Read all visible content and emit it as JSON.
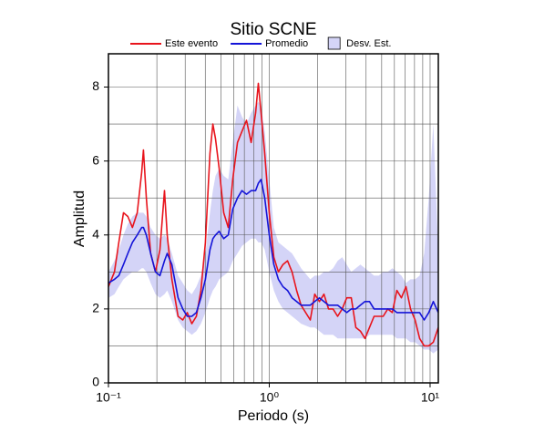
{
  "chart_data": {
    "type": "line",
    "title": "Sitio SCNE",
    "x_label": "Periodo (s)",
    "y_label": "Amplitud",
    "xscale": "log",
    "grid": true,
    "legend": "top",
    "xlim": [
      0.1,
      11.25
    ],
    "ylim": [
      0,
      8.9
    ],
    "xticks": [
      {
        "value": 0.1,
        "label": "10⁻¹"
      },
      {
        "value": 1,
        "label": "10⁰"
      },
      {
        "value": 10,
        "label": "10¹"
      }
    ],
    "xminor": [
      0.2,
      0.3,
      0.4,
      0.5,
      0.6,
      0.7,
      0.8,
      0.9,
      2,
      3,
      4,
      5,
      6,
      7,
      8,
      9
    ],
    "yticks": [
      0,
      2,
      4,
      6,
      8
    ],
    "yminor": [
      1,
      3,
      5,
      7
    ],
    "x": [
      0.1,
      0.109,
      0.116,
      0.124,
      0.132,
      0.141,
      0.151,
      0.161,
      0.165,
      0.172,
      0.183,
      0.196,
      0.209,
      0.223,
      0.232,
      0.248,
      0.271,
      0.29,
      0.309,
      0.33,
      0.352,
      0.376,
      0.401,
      0.428,
      0.446,
      0.463,
      0.488,
      0.521,
      0.556,
      0.593,
      0.634,
      0.676,
      0.722,
      0.771,
      0.822,
      0.855,
      0.889,
      0.937,
      1.0,
      1.067,
      1.139,
      1.216,
      1.298,
      1.385,
      1.479,
      1.578,
      1.798,
      1.919,
      2.049,
      2.187,
      2.334,
      2.492,
      2.66,
      2.839,
      3.031,
      3.235,
      3.453,
      3.686,
      3.935,
      4.2,
      4.483,
      4.786,
      5.108,
      5.453,
      5.821,
      6.213,
      6.632,
      7.079,
      7.557,
      8.066,
      8.61,
      9.191,
      9.811,
      10.47,
      11.25
    ],
    "band": {
      "name": "Desv. Est.",
      "color": "#d4d4f7",
      "lower": [
        2.3,
        2.4,
        2.6,
        2.8,
        2.9,
        3.0,
        3.0,
        3.1,
        3.1,
        3.0,
        2.7,
        2.4,
        2.3,
        2.4,
        2.5,
        2.2,
        1.7,
        1.5,
        1.4,
        1.3,
        1.4,
        1.6,
        1.9,
        2.3,
        2.5,
        2.6,
        2.8,
        2.9,
        3.0,
        3.3,
        3.5,
        3.7,
        3.8,
        3.9,
        3.9,
        3.8,
        3.8,
        3.6,
        3.0,
        2.5,
        2.2,
        2.0,
        1.9,
        1.8,
        1.7,
        1.6,
        1.5,
        1.5,
        1.4,
        1.3,
        1.3,
        1.3,
        1.2,
        1.2,
        1.2,
        1.2,
        1.2,
        1.2,
        1.2,
        1.3,
        1.3,
        1.3,
        1.3,
        1.3,
        1.3,
        1.2,
        1.2,
        1.2,
        1.1,
        1.1,
        1.0,
        0.9,
        0.9,
        0.8,
        0.9
      ],
      "upper": [
        3.0,
        3.3,
        3.6,
        4.0,
        4.3,
        4.5,
        4.6,
        4.6,
        4.6,
        4.5,
        4.2,
        4.0,
        3.9,
        4.0,
        3.9,
        3.5,
        2.9,
        2.7,
        2.5,
        2.4,
        2.6,
        2.9,
        3.5,
        4.6,
        5.2,
        5.6,
        5.8,
        5.6,
        5.5,
        6.5,
        7.5,
        7.2,
        7.0,
        7.3,
        7.5,
        7.6,
        7.5,
        6.8,
        5.5,
        4.2,
        3.8,
        3.7,
        3.6,
        3.5,
        3.3,
        3.1,
        2.8,
        2.9,
        2.9,
        3.0,
        3.0,
        3.1,
        3.3,
        3.4,
        3.2,
        3.0,
        3.1,
        3.2,
        3.1,
        3.0,
        2.9,
        2.9,
        3.0,
        3.0,
        3.1,
        3.0,
        2.9,
        2.7,
        2.8,
        2.8,
        2.9,
        3.5,
        5.0,
        7.0,
        3.5
      ]
    },
    "series": [
      {
        "name": "Este evento",
        "color": "#e8141c",
        "values": [
          2.6,
          3.0,
          3.8,
          4.6,
          4.5,
          4.2,
          4.6,
          5.7,
          6.3,
          5.0,
          3.5,
          3.0,
          3.6,
          5.2,
          4.0,
          2.8,
          1.8,
          1.7,
          1.9,
          1.6,
          1.8,
          2.5,
          3.8,
          6.2,
          7.0,
          6.6,
          5.8,
          4.6,
          4.2,
          5.5,
          6.5,
          6.8,
          7.1,
          6.5,
          7.3,
          8.1,
          7.3,
          6.2,
          4.6,
          3.4,
          3.0,
          3.2,
          3.3,
          3.0,
          2.5,
          2.1,
          1.7,
          2.4,
          2.2,
          2.4,
          2.0,
          2.0,
          1.8,
          2.0,
          2.3,
          2.3,
          1.5,
          1.4,
          1.2,
          1.5,
          1.8,
          1.8,
          1.8,
          2.0,
          1.9,
          2.5,
          2.3,
          2.6,
          2.0,
          1.7,
          1.2,
          1.0,
          1.0,
          1.1,
          1.5
        ]
      },
      {
        "name": "Promedio",
        "color": "#1414d8",
        "values": [
          2.7,
          2.8,
          2.9,
          3.2,
          3.5,
          3.8,
          4.0,
          4.2,
          4.2,
          4.0,
          3.5,
          3.0,
          2.9,
          3.3,
          3.5,
          3.2,
          2.3,
          2.0,
          1.8,
          1.8,
          1.9,
          2.3,
          2.8,
          3.6,
          3.9,
          4.0,
          4.1,
          3.9,
          4.0,
          4.7,
          5.0,
          5.2,
          5.1,
          5.2,
          5.2,
          5.4,
          5.5,
          5.0,
          4.0,
          3.2,
          2.8,
          2.6,
          2.5,
          2.3,
          2.2,
          2.1,
          2.1,
          2.2,
          2.3,
          2.2,
          2.1,
          2.1,
          2.1,
          2.0,
          1.9,
          2.0,
          2.0,
          2.1,
          2.2,
          2.2,
          2.0,
          2.0,
          2.0,
          2.0,
          2.0,
          1.9,
          1.9,
          1.9,
          1.9,
          1.9,
          1.9,
          1.7,
          1.9,
          2.2,
          1.9
        ]
      }
    ]
  }
}
